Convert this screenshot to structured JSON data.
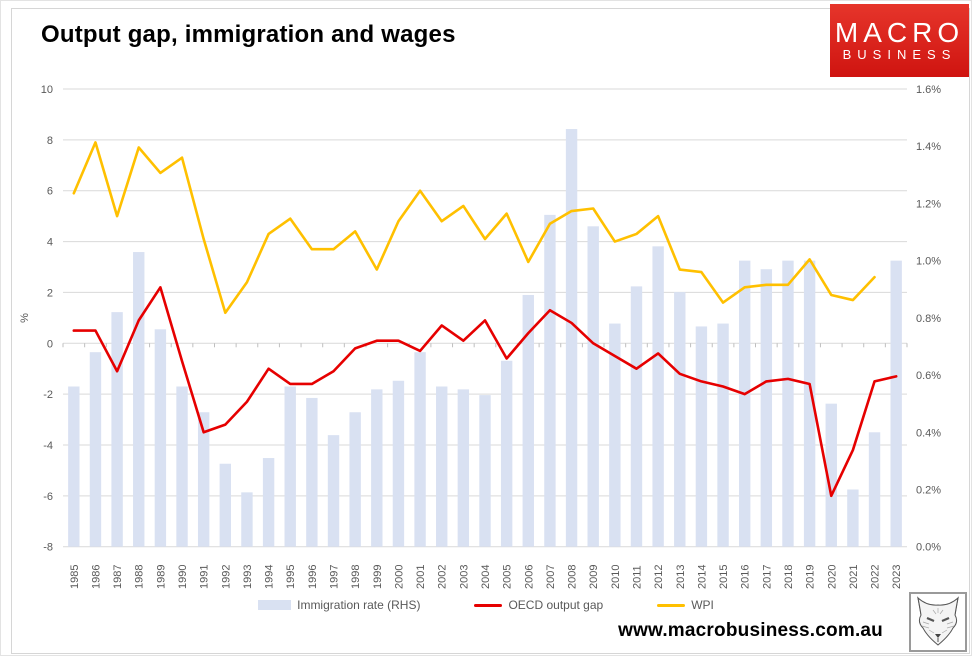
{
  "title": "Output gap, immigration and wages",
  "logo": {
    "line1": "MACRO",
    "line2": "BUSINESS",
    "bg_color": "#e6352b",
    "bg_color_dark": "#cf1410"
  },
  "footer": {
    "url": "www.macrobusiness.com.au"
  },
  "chart_data": {
    "type": "combo-bar-line",
    "title": "Output gap, immigration and wages",
    "grid": true,
    "legend_position": "bottom",
    "gridline_color": "#d9d9d9",
    "tick_mark_color": "#bfbfbf",
    "axis_text_color": "#595959",
    "categories": [
      "1985",
      "1986",
      "1987",
      "1988",
      "1989",
      "1990",
      "1991",
      "1992",
      "1993",
      "1994",
      "1995",
      "1996",
      "1997",
      "1998",
      "1999",
      "2000",
      "2001",
      "2002",
      "2003",
      "2004",
      "2005",
      "2006",
      "2007",
      "2008",
      "2009",
      "2010",
      "2011",
      "2012",
      "2013",
      "2014",
      "2015",
      "2016",
      "2017",
      "2018",
      "2019",
      "2020",
      "2021",
      "2022",
      "2023"
    ],
    "left_axis": {
      "title": "%",
      "min": -8,
      "max": 10,
      "tick_labels": [
        "10",
        "8",
        "6",
        "4",
        "2",
        "0",
        "-2",
        "-4",
        "-6",
        "-8"
      ]
    },
    "right_axis": {
      "min": 0,
      "max": 1.6,
      "tick_labels": [
        "1.6%",
        "1.4%",
        "1.2%",
        "1.0%",
        "0.8%",
        "0.6%",
        "0.4%",
        "0.2%",
        "0.0%"
      ]
    },
    "series": [
      {
        "name": "Immigration rate (RHS)",
        "chart_type": "bar",
        "axis": "right",
        "color": "#d9e1f2",
        "values": [
          0.56,
          0.68,
          0.82,
          1.03,
          0.76,
          0.56,
          0.47,
          0.29,
          0.19,
          0.31,
          0.56,
          0.52,
          0.39,
          0.47,
          0.55,
          0.58,
          0.68,
          0.56,
          0.55,
          0.53,
          0.65,
          0.88,
          1.16,
          1.46,
          1.12,
          0.78,
          0.91,
          1.05,
          0.89,
          0.77,
          0.78,
          1.0,
          0.97,
          1.0,
          1.0,
          0.5,
          0.2,
          0.4,
          1.0
        ]
      },
      {
        "name": "OECD output gap",
        "chart_type": "line",
        "axis": "left",
        "color": "#e60000",
        "values": [
          0.5,
          0.5,
          -1.1,
          0.9,
          2.2,
          -0.7,
          -3.5,
          -3.2,
          -2.3,
          -1.0,
          -1.6,
          -1.6,
          -1.1,
          -0.2,
          0.1,
          0.1,
          -0.3,
          0.7,
          0.1,
          0.9,
          -0.6,
          0.4,
          1.3,
          0.8,
          0.0,
          -0.5,
          -1.0,
          -0.4,
          -1.2,
          -1.5,
          -1.7,
          -2.0,
          -1.5,
          -1.4,
          -1.6,
          -6.0,
          -4.2,
          -1.5,
          -1.3
        ]
      },
      {
        "name": "WPI",
        "chart_type": "line",
        "axis": "left",
        "color": "#ffc000",
        "values": [
          5.9,
          7.9,
          5.0,
          7.7,
          6.7,
          7.3,
          4.1,
          1.2,
          2.4,
          4.3,
          4.9,
          3.7,
          3.7,
          4.4,
          2.9,
          4.8,
          6.0,
          4.8,
          5.4,
          4.1,
          5.1,
          3.2,
          4.7,
          5.2,
          5.3,
          4.0,
          4.3,
          5.0,
          2.9,
          2.8,
          1.6,
          2.2,
          2.3,
          2.3,
          3.3,
          1.9,
          1.7,
          2.6,
          null
        ]
      }
    ]
  }
}
